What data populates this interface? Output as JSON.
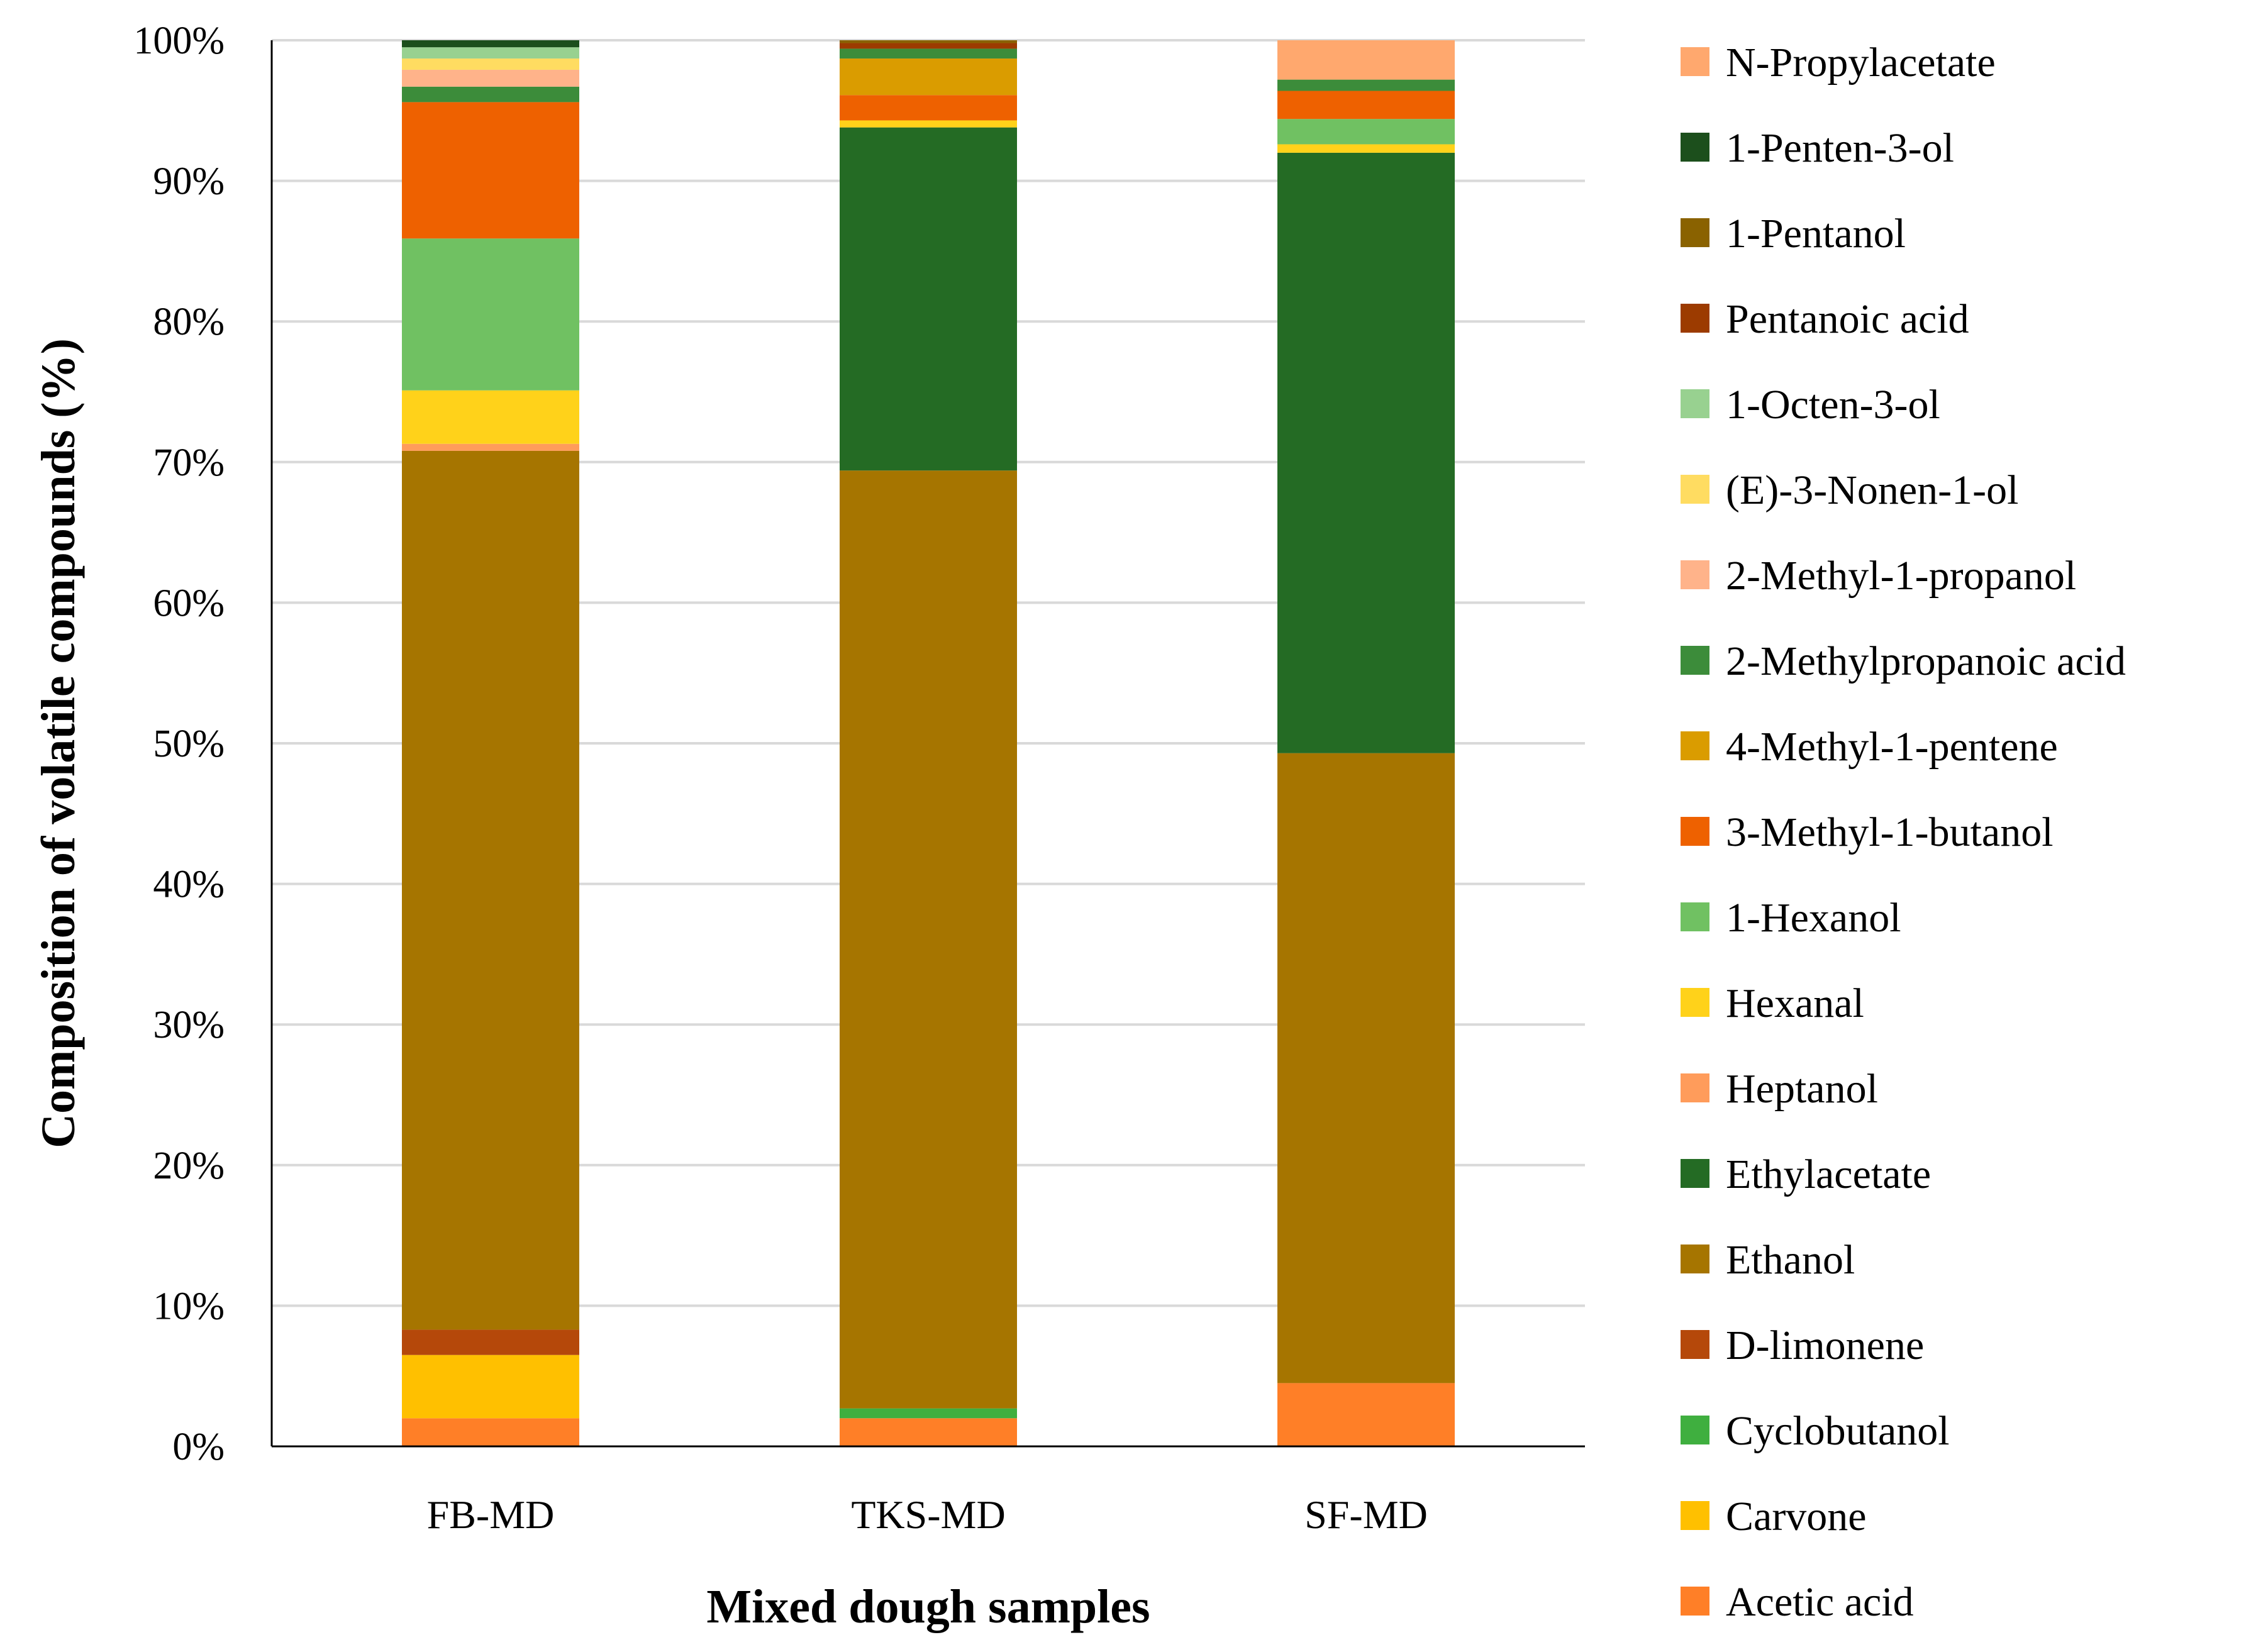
{
  "chart_data": {
    "type": "bar",
    "stacked": true,
    "percent": true,
    "xlabel": "Mixed dough samples",
    "ylabel": "Composition of volatile compounds (%)",
    "ylim": [
      0,
      100
    ],
    "yticks": [
      "0%",
      "10%",
      "20%",
      "30%",
      "40%",
      "50%",
      "60%",
      "70%",
      "80%",
      "90%",
      "100%"
    ],
    "grid": true,
    "legend_position": "right",
    "categories": [
      "FB-MD",
      "TKS-MD",
      "SF-MD"
    ],
    "series": [
      {
        "name": "Acetic acid",
        "color": "#FF7F27",
        "values": [
          2.0,
          2.0,
          4.5
        ]
      },
      {
        "name": "Carvone",
        "color": "#FFC000",
        "values": [
          4.5,
          0.0,
          0.0
        ]
      },
      {
        "name": "Cyclobutanol",
        "color": "#3FAF3F",
        "values": [
          0.0,
          0.7,
          0.0
        ]
      },
      {
        "name": "D-limonene",
        "color": "#B5480A",
        "values": [
          1.8,
          0.0,
          0.0
        ]
      },
      {
        "name": "Ethanol",
        "color": "#A67500",
        "values": [
          62.5,
          66.7,
          44.8
        ]
      },
      {
        "name": "Ethylacetate",
        "color": "#246B24",
        "values": [
          0.0,
          24.4,
          42.7
        ]
      },
      {
        "name": "Heptanol",
        "color": "#FF9C5B",
        "values": [
          0.5,
          0.0,
          0.0
        ]
      },
      {
        "name": "Hexanal",
        "color": "#FFD21A",
        "values": [
          3.8,
          0.5,
          0.6
        ]
      },
      {
        "name": "1-Hexanol",
        "color": "#70C162",
        "values": [
          10.8,
          0.0,
          1.8
        ]
      },
      {
        "name": "3-Methyl-1-butanol",
        "color": "#EE6100",
        "values": [
          9.7,
          1.8,
          2.0
        ]
      },
      {
        "name": "4-Methyl-1-pentene",
        "color": "#DA9C00",
        "values": [
          0.0,
          2.6,
          0.0
        ]
      },
      {
        "name": "2-Methylpropanoic acid",
        "color": "#3C8C3A",
        "values": [
          1.1,
          0.7,
          0.8
        ]
      },
      {
        "name": "2-Methyl-1-propanol",
        "color": "#FFB38A",
        "values": [
          1.2,
          0.0,
          0.0
        ]
      },
      {
        "name": "(E)-3-Nonen-1-ol",
        "color": "#FFDC61",
        "values": [
          0.8,
          0.0,
          0.0
        ]
      },
      {
        "name": "1-Octen-3-ol",
        "color": "#98D190",
        "values": [
          0.8,
          0.0,
          0.0
        ]
      },
      {
        "name": "Pentanoic acid",
        "color": "#9C3B00",
        "values": [
          0.0,
          0.4,
          0.0
        ]
      },
      {
        "name": "1-Pentanol",
        "color": "#8A6200",
        "values": [
          0.0,
          0.2,
          0.0
        ]
      },
      {
        "name": "1-Penten-3-ol",
        "color": "#1C4F1C",
        "values": [
          0.5,
          0.0,
          0.0
        ]
      },
      {
        "name": "N-Propylacetate",
        "color": "#FFA86E",
        "values": [
          0.0,
          0.0,
          2.8
        ]
      }
    ]
  }
}
